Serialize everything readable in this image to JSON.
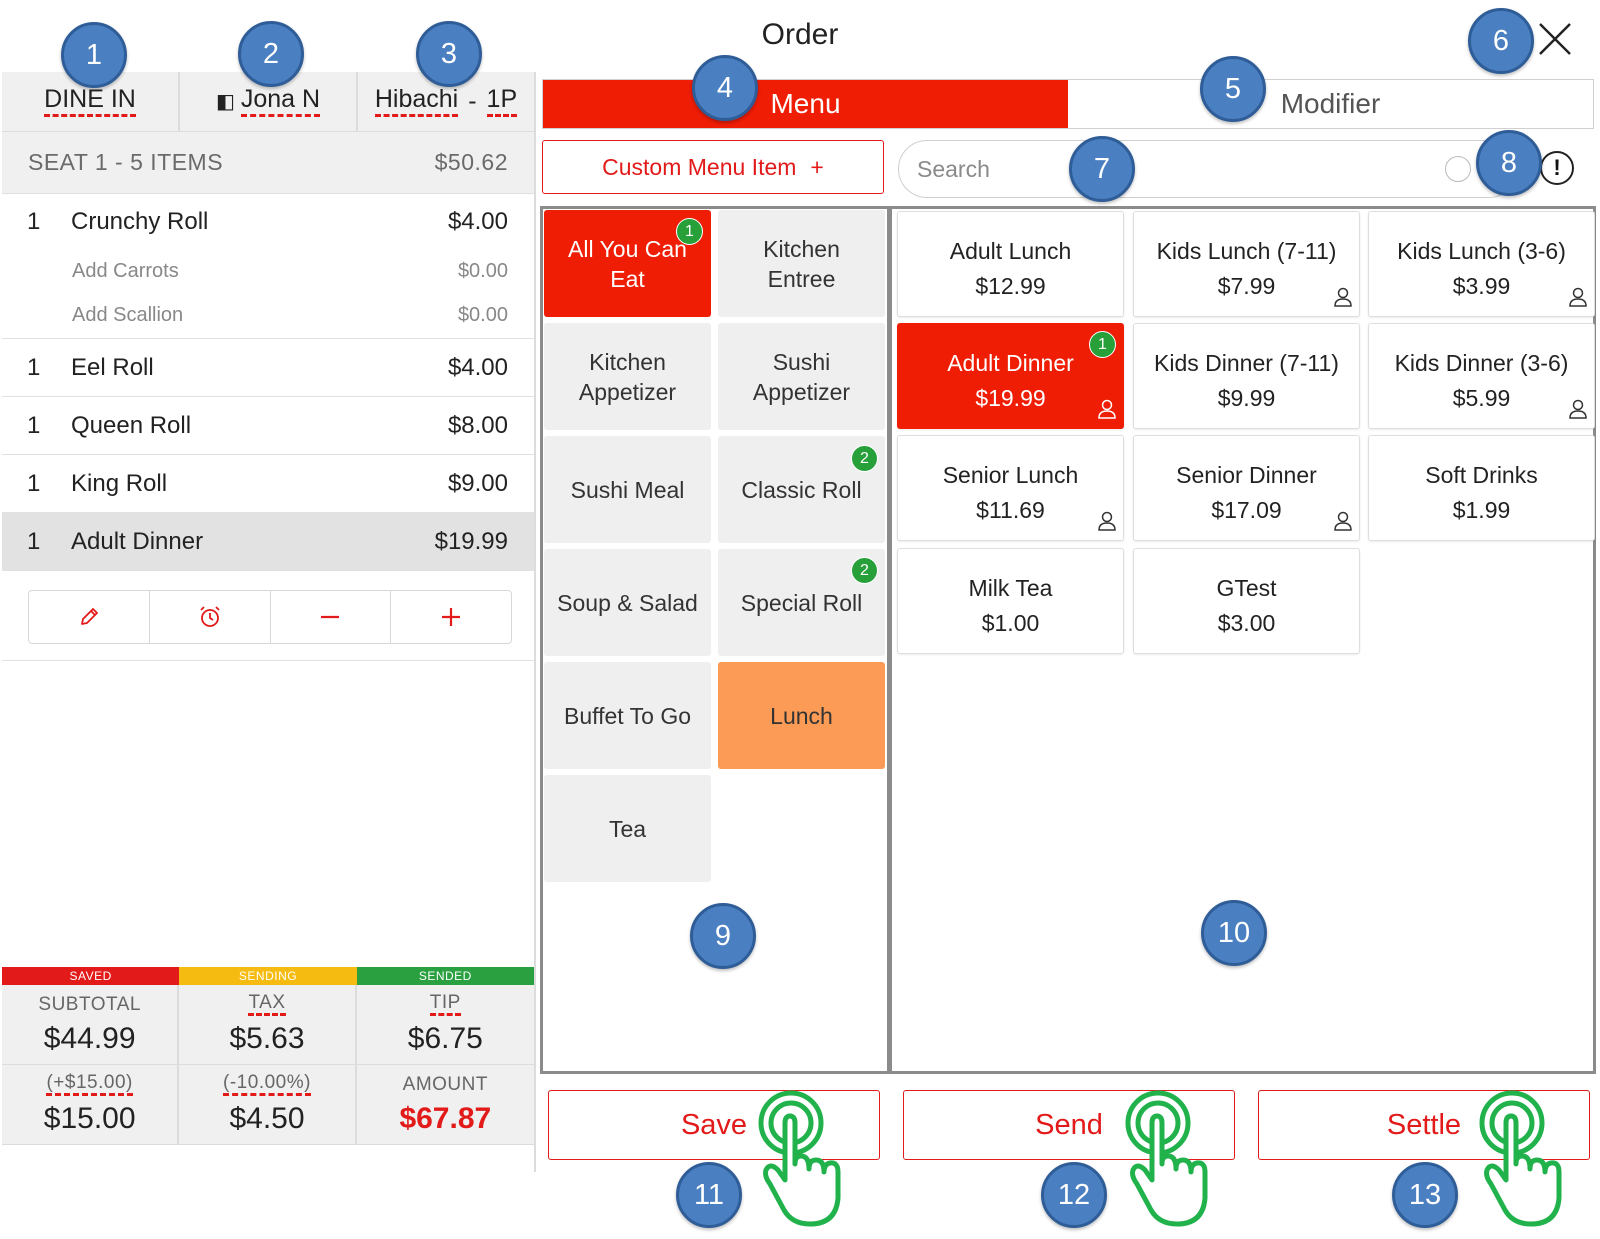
{
  "window": {
    "title": "Order"
  },
  "header": {
    "dine_in": "DINE IN",
    "server": "Jona N",
    "table_area": "Hibachi",
    "table_sep": "-",
    "table": "1P"
  },
  "seat": {
    "label": "SEAT 1 - 5 ITEMS",
    "total": "$50.62"
  },
  "order_items": [
    {
      "qty": "1",
      "name": "Crunchy Roll",
      "price": "$4.00",
      "modifiers": [
        {
          "name": "Add Carrots",
          "price": "$0.00"
        },
        {
          "name": "Add Scallion",
          "price": "$0.00"
        }
      ]
    },
    {
      "qty": "1",
      "name": "Eel Roll",
      "price": "$4.00"
    },
    {
      "qty": "1",
      "name": "Queen Roll",
      "price": "$8.00"
    },
    {
      "qty": "1",
      "name": "King Roll",
      "price": "$9.00"
    },
    {
      "qty": "1",
      "name": "Adult Dinner",
      "price": "$19.99",
      "selected": true
    }
  ],
  "item_actions": [
    "edit-icon",
    "alarm-icon",
    "minus-icon",
    "plus-icon"
  ],
  "status_bar": [
    {
      "label": "SAVED",
      "color": "#e21a1a"
    },
    {
      "label": "SENDING",
      "color": "#f6bb10"
    },
    {
      "label": "SENDED",
      "color": "#2aa040"
    }
  ],
  "totals": {
    "subtotal_label": "SUBTOTAL",
    "subtotal": "$44.99",
    "tax_label": "TAX",
    "tax": "$5.63",
    "tip_label": "TIP",
    "tip": "$6.75",
    "service_pct": "(+$15.00)",
    "service": "$15.00",
    "discount_pct": "(-10.00%)",
    "discount": "$4.50",
    "amount_label": "AMOUNT",
    "amount": "$67.87"
  },
  "tabs": {
    "menu": "Menu",
    "modifier": "Modifier"
  },
  "custom_item": {
    "label": "Custom Menu Item",
    "icon": "+"
  },
  "search": {
    "placeholder": "Search"
  },
  "categories": [
    {
      "label": "All You Can Eat",
      "badge": "1",
      "active": true
    },
    {
      "label": "Kitchen Entree"
    },
    {
      "label": "Kitchen Appetizer"
    },
    {
      "label": "Sushi Appetizer"
    },
    {
      "label": "Sushi Meal"
    },
    {
      "label": "Classic Roll",
      "badge": "2"
    },
    {
      "label": "Soup & Salad"
    },
    {
      "label": "Special Roll",
      "badge": "2"
    },
    {
      "label": "Buffet To Go"
    },
    {
      "label": "Lunch",
      "highlight": "orange"
    },
    {
      "label": "Tea"
    }
  ],
  "menu_items": [
    {
      "name": "Adult Lunch",
      "price": "$12.99",
      "person": false
    },
    {
      "name": "Kids Lunch (7-11)",
      "price": "$7.99",
      "person": true
    },
    {
      "name": "Kids Lunch (3-6)",
      "price": "$3.99",
      "person": true
    },
    {
      "name": "Adult Dinner",
      "price": "$19.99",
      "person": true,
      "badge": "1",
      "active": true
    },
    {
      "name": "Kids Dinner (7-11)",
      "price": "$9.99",
      "person": false
    },
    {
      "name": "Kids Dinner (3-6)",
      "price": "$5.99",
      "person": true
    },
    {
      "name": "Senior Lunch",
      "price": "$11.69",
      "person": true
    },
    {
      "name": "Senior Dinner",
      "price": "$17.09",
      "person": true
    },
    {
      "name": "Soft Drinks",
      "price": "$1.99",
      "person": false
    },
    {
      "name": "Milk Tea",
      "price": "$1.00",
      "person": false
    },
    {
      "name": "GTest",
      "price": "$3.00",
      "person": false
    }
  ],
  "buttons": {
    "save": "Save",
    "send": "Send",
    "settle": "Settle"
  },
  "callouts": [
    "1",
    "2",
    "3",
    "4",
    "5",
    "6",
    "7",
    "8",
    "9",
    "10",
    "11",
    "12",
    "13"
  ],
  "colors": {
    "accent": "#ef1d04",
    "callout": "#4a7fc1",
    "badge": "#27a03a",
    "hand": "#22b24c",
    "lunch": "#fb9b55"
  }
}
